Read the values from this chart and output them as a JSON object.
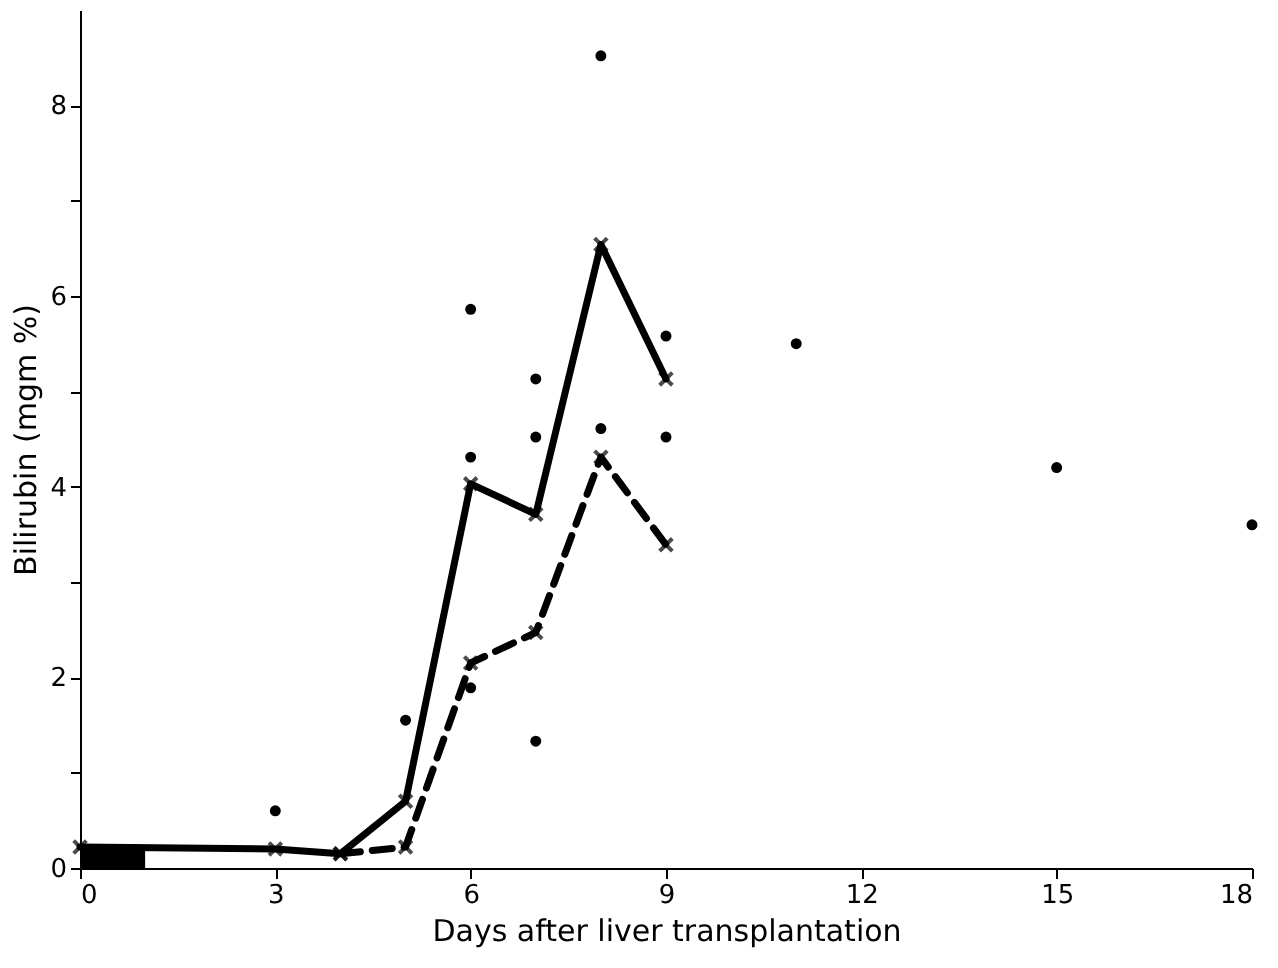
{
  "chart_data": {
    "type": "line",
    "xlabel": "Days after liver transplantation",
    "ylabel": "Bilirubin (mgm %)",
    "xlim": [
      0,
      18
    ],
    "xticks": [
      0,
      3,
      6,
      9,
      12,
      15,
      18
    ],
    "ylim": [
      0,
      9
    ],
    "yticks": [
      0,
      {
        "value": 1,
        "label": null
      },
      2,
      {
        "value": 3,
        "label": null
      },
      4,
      {
        "value": 5,
        "label": null
      },
      6,
      {
        "value": 7,
        "label": null
      },
      8
    ],
    "grid": false,
    "series": [
      {
        "type": "area",
        "color": "#000000",
        "x": [
          0,
          1
        ],
        "values": [
          0.22,
          0.22
        ]
      },
      {
        "color": "#000000",
        "line_style": "solid",
        "marker": "cross",
        "x": [
          0,
          3,
          4,
          5,
          6,
          7,
          8,
          9
        ],
        "values": [
          0.22,
          0.2,
          0.15,
          0.7,
          4.03,
          3.71,
          6.54,
          5.13
        ]
      },
      {
        "color": "#000000",
        "line_style": "dashed",
        "marker": "cross",
        "x": [
          4,
          5,
          6,
          7,
          8,
          9
        ],
        "values": [
          0.15,
          0.22,
          2.15,
          2.47,
          4.31,
          3.39
        ]
      },
      {
        "type": "scatter",
        "color": "#000000",
        "marker": "circle",
        "x": [
          3,
          5,
          6,
          6,
          6,
          7,
          7,
          7,
          8,
          8,
          9,
          9,
          11,
          15,
          18
        ],
        "values": [
          0.6,
          1.55,
          1.89,
          4.31,
          5.86,
          1.33,
          4.52,
          5.13,
          4.61,
          8.52,
          4.52,
          5.58,
          5.5,
          4.2,
          3.6
        ]
      }
    ]
  }
}
